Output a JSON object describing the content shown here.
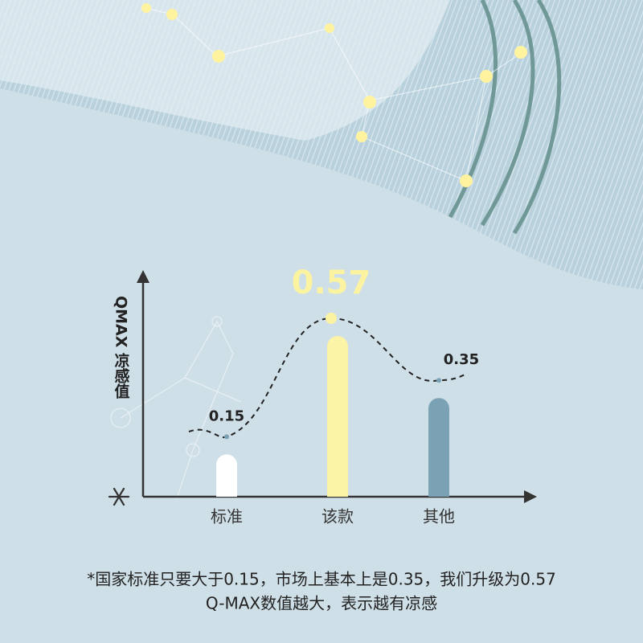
{
  "chart_data": {
    "type": "bar",
    "y_label": "QMAX 凉感值",
    "categories": [
      "标准",
      "该款",
      "其他"
    ],
    "values": [
      0.15,
      0.57,
      0.35
    ],
    "colors": [
      "#ffffff",
      "#fbf4a6",
      "#7ba2b4"
    ],
    "highlight_color": "#fbf3a0",
    "footnote": [
      "*国家标准只要大于0.15，市场上基本上是0.35，我们升级为0.57",
      "Q-MAX数值越大，表示越有凉感"
    ]
  }
}
